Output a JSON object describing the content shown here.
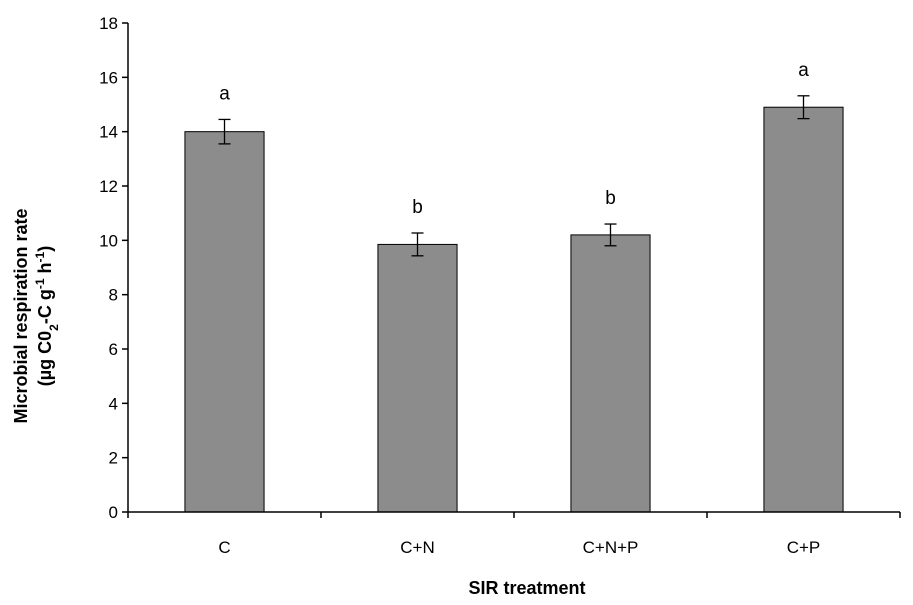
{
  "chart_data": {
    "type": "bar",
    "categories": [
      "C",
      "C+N",
      "C+N+P",
      "C+P"
    ],
    "values": [
      14.0,
      9.85,
      10.2,
      14.9
    ],
    "errors": [
      0.45,
      0.42,
      0.4,
      0.42
    ],
    "significance_labels": [
      "a",
      "b",
      "b",
      "a"
    ],
    "xlabel": "SIR treatment",
    "ylabel": {
      "line1": "Microbial respiration rate",
      "line2_parts": [
        {
          "text": "(µg C0",
          "style": "normal"
        },
        {
          "text": "2",
          "style": "sub"
        },
        {
          "text": "-C g",
          "style": "normal"
        },
        {
          "text": "-1",
          "style": "sup"
        },
        {
          "text": " h",
          "style": "normal"
        },
        {
          "text": "-1",
          "style": "sup"
        },
        {
          "text": ")",
          "style": "normal"
        }
      ]
    },
    "ylim": [
      0,
      18
    ],
    "yticks": [
      0,
      2,
      4,
      6,
      8,
      10,
      12,
      14,
      16,
      18
    ],
    "bar_color": "#8c8c8c",
    "bar_edge_color": "#000000",
    "grid": false,
    "legend": "none"
  }
}
